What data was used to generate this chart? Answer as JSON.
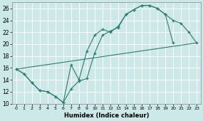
{
  "xlabel": "Humidex (Indice chaleur)",
  "bg_color": "#cce8e8",
  "grid_color": "#ffffff",
  "line_color": "#2d7d6e",
  "xlim": [
    -0.5,
    23.5
  ],
  "ylim": [
    10,
    27
  ],
  "xticks": [
    0,
    1,
    2,
    3,
    4,
    5,
    6,
    7,
    8,
    9,
    10,
    11,
    12,
    13,
    14,
    15,
    16,
    17,
    18,
    19,
    20,
    21,
    22,
    23
  ],
  "yticks": [
    10,
    12,
    14,
    16,
    18,
    20,
    22,
    24,
    26
  ],
  "line1_x": [
    0,
    1,
    2,
    3,
    4,
    5,
    6,
    7,
    8,
    9,
    10,
    11,
    12,
    13,
    14,
    15,
    16,
    17,
    18,
    19,
    20
  ],
  "line1_y": [
    15.8,
    15.0,
    13.5,
    12.2,
    12.0,
    11.2,
    10.2,
    12.5,
    13.8,
    14.2,
    18.5,
    21.5,
    22.2,
    22.8,
    25.0,
    25.8,
    26.5,
    26.5,
    26.0,
    25.0,
    20.2
  ],
  "line2_x": [
    0,
    1,
    2,
    3,
    4,
    5,
    6,
    7,
    8,
    9,
    10,
    11,
    12,
    13,
    14,
    15,
    16,
    17,
    18,
    19,
    20,
    21,
    22,
    23
  ],
  "line2_y": [
    15.8,
    15.0,
    13.5,
    12.2,
    12.0,
    11.2,
    10.2,
    16.5,
    14.0,
    18.8,
    21.5,
    22.5,
    22.0,
    23.0,
    25.0,
    25.8,
    26.5,
    26.5,
    26.0,
    25.0,
    24.0,
    23.5,
    22.0,
    20.2
  ],
  "line3_x": [
    0,
    23
  ],
  "line3_y": [
    15.8,
    20.2
  ]
}
